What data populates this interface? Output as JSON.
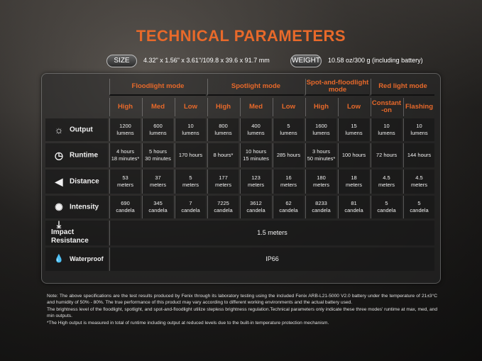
{
  "title": "TECHNICAL PARAMETERS",
  "size": {
    "label": "SIZE",
    "value": "4.32\" x 1.56\" x 3.61\"/109.8 x 39.6 x 91.7 mm"
  },
  "weight": {
    "label": "WEIGHT",
    "value": "10.58 oz/300 g (including battery)"
  },
  "colors": {
    "accent": "#e8692a"
  },
  "groups": [
    "Floodlight mode",
    "Spotlight mode",
    "Spot-and-floodlight mode",
    "Red light mode"
  ],
  "levels": [
    "High",
    "Med",
    "Low",
    "High",
    "Med",
    "Low",
    "High",
    "Low",
    "Constant -on",
    "Flashing"
  ],
  "rows": [
    {
      "label": "Output",
      "icon": "sun-icon",
      "cells": [
        [
          "1200",
          "lumens"
        ],
        [
          "600",
          "lumens"
        ],
        [
          "10",
          "lumens"
        ],
        [
          "800",
          "lumens"
        ],
        [
          "400",
          "lumens"
        ],
        [
          "5",
          "lumens"
        ],
        [
          "1600",
          "lumens"
        ],
        [
          "15",
          "lumens"
        ],
        [
          "10",
          "lumens"
        ],
        [
          "10",
          "lumens"
        ]
      ]
    },
    {
      "label": "Runtime",
      "icon": "clock-icon",
      "cells": [
        [
          "4 hours",
          "18 minutes*"
        ],
        [
          "5 hours",
          "30 minutes"
        ],
        [
          "170 hours",
          ""
        ],
        [
          "8 hours*",
          ""
        ],
        [
          "10 hours",
          "15 minutes"
        ],
        [
          "285 hours",
          ""
        ],
        [
          "3 hours",
          "50 minutes*"
        ],
        [
          "100 hours",
          ""
        ],
        [
          "72 hours",
          ""
        ],
        [
          "144 hours",
          ""
        ]
      ]
    },
    {
      "label": "Distance",
      "icon": "beam-icon",
      "cells": [
        [
          "53",
          "meters"
        ],
        [
          "37",
          "meters"
        ],
        [
          "5",
          "meters"
        ],
        [
          "177",
          "meters"
        ],
        [
          "123",
          "meters"
        ],
        [
          "16",
          "meters"
        ],
        [
          "180",
          "meters"
        ],
        [
          "18",
          "meters"
        ],
        [
          "4.5",
          "meters"
        ],
        [
          "4.5",
          "meters"
        ]
      ]
    },
    {
      "label": "Intensity",
      "icon": "intensity-icon",
      "cells": [
        [
          "690",
          "candela"
        ],
        [
          "345",
          "candela"
        ],
        [
          "7",
          "candela"
        ],
        [
          "7225",
          "candela"
        ],
        [
          "3612",
          "candela"
        ],
        [
          "62",
          "candela"
        ],
        [
          "8233",
          "candela"
        ],
        [
          "81",
          "candela"
        ],
        [
          "5",
          "candela"
        ],
        [
          "5",
          "candela"
        ]
      ]
    }
  ],
  "impact": {
    "label": "Impact Resistance",
    "value": "1.5 meters"
  },
  "waterproof": {
    "label": "Waterproof",
    "value": "IP66"
  },
  "notes": [
    "Note: The above specifications are the test results produced by Fenix through its laboratory testing using the included Fenix ARB-L21-5000 V2.0 battery under the temperature of 21±3°C and humidity of 50% - 80%.  The true performance of this product may vary according to different working environments and the actual battery used.",
    "The brightness level of the floodlight, spotlight, and spot-and-floodlight utilize stepless brightness regulation.Technical parameters only indicate these three modes' runtime at max, med, and min outputs.",
    "*The High output is measured in total of runtime including output at reduced levels due to the built-in temperature protection mechanism."
  ]
}
